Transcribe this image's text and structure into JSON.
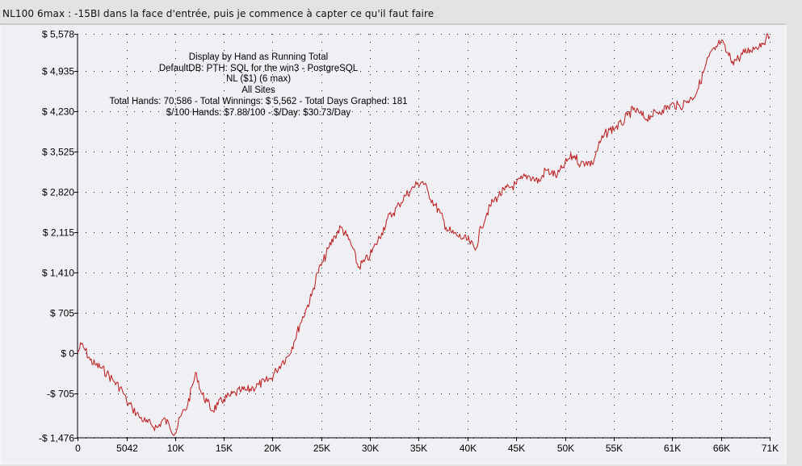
{
  "caption": "NL100 6max : -15BI dans la face d'entrée, puis je commence à capter ce qu'il faut faire",
  "colors": {
    "line": "#bb1c1c",
    "plot_bg": "#f0eff4",
    "page_bg": "#e3e3e3"
  },
  "info_lines": [
    "Display by Hand as Running Total",
    "DefaultDB: PTH: SQL for the win3 - PostgreSQL",
    "NL ($1) (6 max)",
    "All Sites",
    "Total Hands: 70,586 - Total Winnings: $ 5,562 - Total Days Graphed: 181",
    "$/100 Hands: $7.88/100 - $/Day: $30.73/Day"
  ],
  "chart_data": {
    "type": "line",
    "xlabel": "",
    "ylabel": "",
    "xlim": [
      0,
      71000
    ],
    "ylim": [
      -1476,
      5578
    ],
    "grid": true,
    "x_tick_values": [
      0,
      5042,
      10000,
      15000,
      20000,
      25000,
      30000,
      35000,
      40000,
      45000,
      50000,
      55000,
      61000,
      66000,
      71000
    ],
    "x_tick_labels": [
      "0",
      "5042",
      "10K",
      "15K",
      "20K",
      "25K",
      "30K",
      "35K",
      "40K",
      "45K",
      "50K",
      "55K",
      "61K",
      "66K",
      "71K"
    ],
    "y_tick_values": [
      5578,
      4935,
      4230,
      3525,
      2820,
      2115,
      1410,
      705,
      0,
      -705,
      -1476
    ],
    "y_tick_labels": [
      "$ 5,578",
      "$ 4,935",
      "$ 4,230",
      "$ 3,525",
      "$ 2,820",
      "$ 2,115",
      "$ 1,410",
      "$ 705",
      "$ 0",
      "-$ 705",
      "-$ 1,476"
    ],
    "series": [
      {
        "x": [
          0,
          400,
          800,
          1300,
          1800,
          2400,
          3000,
          3800,
          4600,
          5042,
          5600,
          6300,
          7000,
          7600,
          8200,
          8800,
          9400,
          10000,
          10600,
          11300,
          11800,
          12200,
          12700,
          13300,
          13800,
          14400,
          15000,
          15600,
          16200,
          16800,
          17400,
          18000,
          18600,
          19200,
          19800,
          20400,
          21000,
          21600,
          22200,
          22800,
          23400,
          24000,
          24600,
          25200,
          25800,
          26400,
          27000,
          27600,
          28200,
          28800,
          29400,
          30000,
          30600,
          31200,
          31800,
          32400,
          33000,
          33600,
          34200,
          34800,
          35400,
          36000,
          36600,
          37200,
          37800,
          38400,
          39000,
          39600,
          40200,
          40800,
          41400,
          42000,
          42600,
          43200,
          43800,
          44400,
          45000,
          45600,
          46200,
          46800,
          47400,
          48000,
          48600,
          49200,
          49800,
          50400,
          51000,
          51600,
          52200,
          52800,
          53400,
          54000,
          54600,
          55200,
          55800,
          56400,
          57000,
          57600,
          58200,
          58800,
          59400,
          60000,
          60600,
          61200,
          61800,
          62400,
          63000,
          63600,
          64200,
          64800,
          65400,
          66000,
          66600,
          67200,
          67800,
          68400,
          69000,
          69600,
          70200,
          70600,
          71000
        ],
        "y": [
          0,
          160,
          50,
          -120,
          -200,
          -250,
          -350,
          -500,
          -650,
          -850,
          -950,
          -1100,
          -1200,
          -1250,
          -1300,
          -1150,
          -1250,
          -1400,
          -1100,
          -900,
          -550,
          -350,
          -700,
          -850,
          -1000,
          -900,
          -800,
          -750,
          -700,
          -650,
          -650,
          -600,
          -550,
          -500,
          -450,
          -300,
          -150,
          -50,
          200,
          500,
          750,
          1000,
          1400,
          1600,
          1850,
          2050,
          2200,
          2050,
          1850,
          1500,
          1600,
          1700,
          1900,
          2100,
          2350,
          2450,
          2600,
          2750,
          2850,
          2950,
          3000,
          2800,
          2600,
          2450,
          2200,
          2100,
          2050,
          2000,
          1950,
          1800,
          2200,
          2450,
          2650,
          2750,
          2850,
          2900,
          2950,
          3050,
          3100,
          3050,
          3000,
          3200,
          3150,
          3100,
          3250,
          3400,
          3450,
          3300,
          3350,
          3300,
          3600,
          3800,
          3900,
          3950,
          4000,
          4150,
          4250,
          4200,
          4100,
          4150,
          4200,
          4250,
          4300,
          4350,
          4300,
          4400,
          4450,
          4600,
          4900,
          5200,
          5300,
          5450,
          5250,
          5100,
          5150,
          5250,
          5300,
          5350,
          5420,
          5480,
          5530
        ]
      }
    ]
  }
}
